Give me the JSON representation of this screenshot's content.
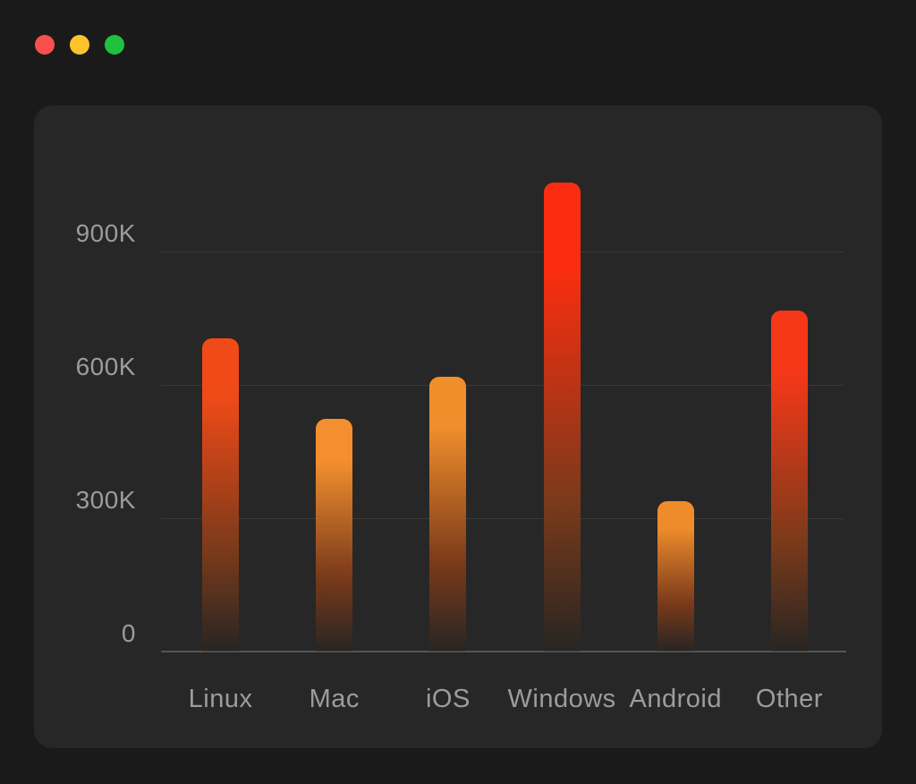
{
  "window": {
    "controls": [
      {
        "name": "close",
        "color": "#f7514d"
      },
      {
        "name": "minimize",
        "color": "#fcc32d"
      },
      {
        "name": "zoom",
        "color": "#20c13f"
      }
    ]
  },
  "chart_data": {
    "type": "bar",
    "title": "",
    "xlabel": "",
    "ylabel": "",
    "categories": [
      "Linux",
      "Mac",
      "iOS",
      "Windows",
      "Android",
      "Other"
    ],
    "values": [
      705000,
      523000,
      618000,
      1055000,
      338000,
      767000
    ],
    "y_ticks": [
      {
        "label": "0",
        "value": 0
      },
      {
        "label": "300K",
        "value": 300000
      },
      {
        "label": "600K",
        "value": 600000
      },
      {
        "label": "900K",
        "value": 900000
      }
    ],
    "ylim": [
      0,
      1080000
    ],
    "grid": "horizontal-only",
    "legend": "none",
    "bar_colors_top": [
      "#f04a18",
      "#f38f2f",
      "#f18e2c",
      "#fb2d10",
      "#ee8c2c",
      "#f63818"
    ],
    "bar_gradient_mid": "#7a3a1a",
    "bar_gradient_bottom": "rgba(40,32,25,0.3)"
  },
  "colors": {
    "page_bg": "#1a1a1a",
    "panel_bg": "#272727",
    "grid_line": "#383838",
    "axis_line": "#555555",
    "tick_label": "#9c9c9c"
  }
}
